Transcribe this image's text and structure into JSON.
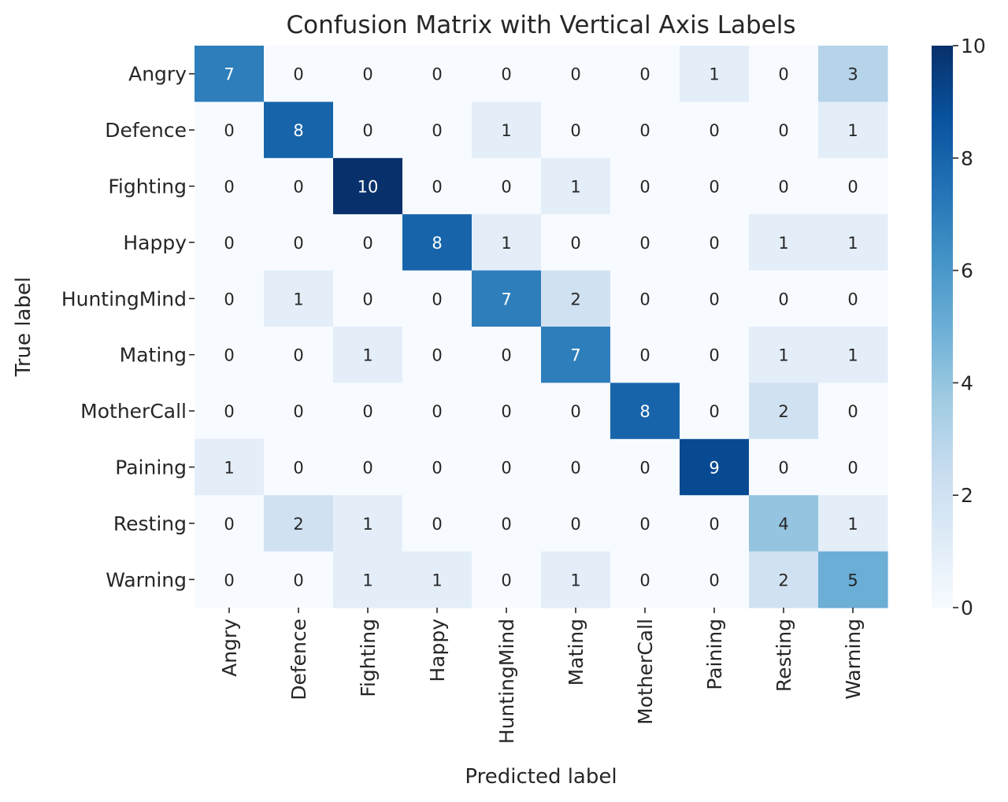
{
  "chart_data": {
    "type": "heatmap",
    "title": "Confusion Matrix with Vertical Axis Labels",
    "xlabel": "Predicted label",
    "ylabel": "True label",
    "x_categories": [
      "Angry",
      "Defence",
      "Fighting",
      "Happy",
      "HuntingMind",
      "Mating",
      "MotherCall",
      "Paining",
      "Resting",
      "Warning"
    ],
    "y_categories": [
      "Angry",
      "Defence",
      "Fighting",
      "Happy",
      "HuntingMind",
      "Mating",
      "MotherCall",
      "Paining",
      "Resting",
      "Warning"
    ],
    "values": [
      [
        7,
        0,
        0,
        0,
        0,
        0,
        0,
        1,
        0,
        3
      ],
      [
        0,
        8,
        0,
        0,
        1,
        0,
        0,
        0,
        0,
        1
      ],
      [
        0,
        0,
        10,
        0,
        0,
        1,
        0,
        0,
        0,
        0
      ],
      [
        0,
        0,
        0,
        8,
        1,
        0,
        0,
        0,
        1,
        1
      ],
      [
        0,
        1,
        0,
        0,
        7,
        2,
        0,
        0,
        0,
        0
      ],
      [
        0,
        0,
        1,
        0,
        0,
        7,
        0,
        0,
        1,
        1
      ],
      [
        0,
        0,
        0,
        0,
        0,
        0,
        8,
        0,
        2,
        0
      ],
      [
        1,
        0,
        0,
        0,
        0,
        0,
        0,
        9,
        0,
        0
      ],
      [
        0,
        2,
        1,
        0,
        0,
        0,
        0,
        0,
        4,
        1
      ],
      [
        0,
        0,
        1,
        1,
        0,
        1,
        0,
        0,
        2,
        5
      ]
    ],
    "colormap": "Blues",
    "value_range": [
      0,
      10
    ],
    "colorbar_ticks": [
      0,
      2,
      4,
      6,
      8,
      10
    ],
    "grid": false
  }
}
